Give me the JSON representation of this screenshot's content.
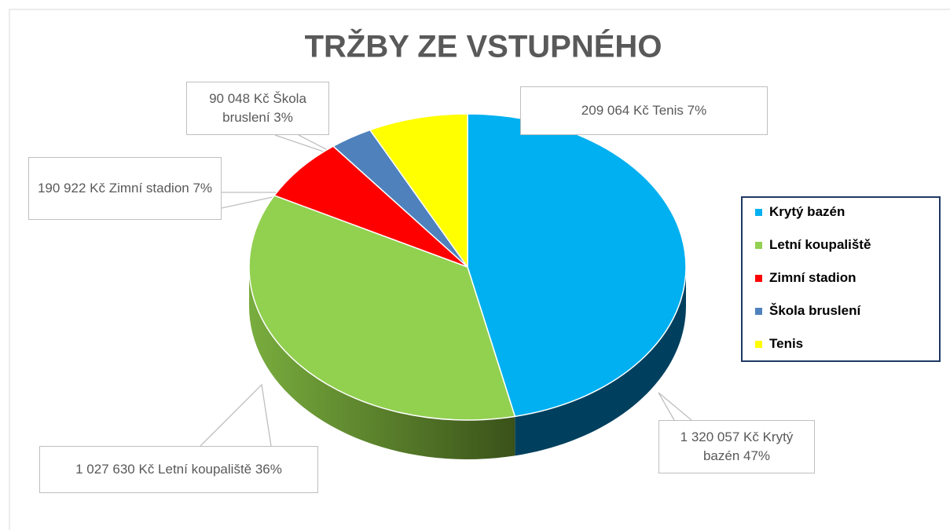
{
  "chart_data": {
    "type": "pie3d",
    "title": "TRŽBY ZE VSTUPNÉHO",
    "categories": [
      "Krytý bazén",
      "Letní koupaliště",
      "Zimní stadion",
      "Škola bruslení",
      "Tenis"
    ],
    "values": [
      1320057,
      1027630,
      190922,
      90048,
      209064
    ],
    "value_labels": [
      "1 320 057 Kč Krytý bazén 47%",
      "1 027 630 Kč Letní koupaliště 36%",
      "190 922 Kč Zimní stadion 7%",
      "90 048 Kč Škola bruslení 3%",
      "209 064 Kč Tenis 7%"
    ],
    "colors": [
      "#00b0f0",
      "#92d050",
      "#ff0000",
      "#4f81bd",
      "#ffff00"
    ],
    "legend": "right"
  }
}
